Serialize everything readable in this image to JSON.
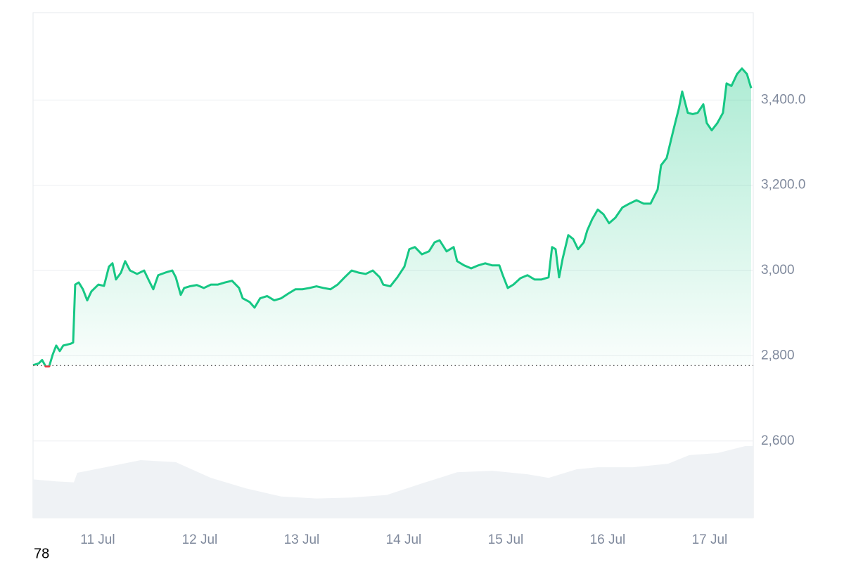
{
  "chart_data": {
    "type": "line",
    "x": [
      10.366,
      10.421,
      10.455,
      10.49,
      10.524,
      10.559,
      10.593,
      10.628,
      10.662,
      10.731,
      10.759,
      10.779,
      10.814,
      10.855,
      10.897,
      10.938,
      11.007,
      11.062,
      11.11,
      11.145,
      11.179,
      11.228,
      11.269,
      11.317,
      11.386,
      11.455,
      11.503,
      11.545,
      11.593,
      11.662,
      11.731,
      11.766,
      11.814,
      11.848,
      11.903,
      11.972,
      12.041,
      12.11,
      12.179,
      12.248,
      12.317,
      12.386,
      12.421,
      12.49,
      12.538,
      12.593,
      12.662,
      12.731,
      12.8,
      12.869,
      12.938,
      13.007,
      13.076,
      13.145,
      13.214,
      13.283,
      13.352,
      13.421,
      13.49,
      13.559,
      13.628,
      13.697,
      13.766,
      13.8,
      13.869,
      13.938,
      14.007,
      14.055,
      14.11,
      14.179,
      14.248,
      14.303,
      14.352,
      14.421,
      14.49,
      14.524,
      14.593,
      14.662,
      14.731,
      14.8,
      14.869,
      14.938,
      14.972,
      15.021,
      15.076,
      15.145,
      15.214,
      15.283,
      15.352,
      15.421,
      15.455,
      15.49,
      15.524,
      15.559,
      15.614,
      15.662,
      15.71,
      15.766,
      15.8,
      15.848,
      15.903,
      15.959,
      16.014,
      16.076,
      16.145,
      16.214,
      16.283,
      16.352,
      16.421,
      16.49,
      16.524,
      16.579,
      16.628,
      16.662,
      16.697,
      16.731,
      16.786,
      16.834,
      16.883,
      16.938,
      16.972,
      17.021,
      17.076,
      17.131,
      17.166,
      17.214,
      17.269,
      17.317,
      17.366,
      17.407
    ],
    "values": [
      2778,
      2782,
      2790,
      2775,
      2775,
      2803,
      2824,
      2811,
      2824,
      2828,
      2831,
      2967,
      2972,
      2956,
      2930,
      2951,
      2967,
      2964,
      3009,
      3017,
      2979,
      2995,
      3022,
      3000,
      2992,
      3000,
      2976,
      2956,
      2989,
      2995,
      3000,
      2984,
      2943,
      2959,
      2963,
      2966,
      2959,
      2967,
      2967,
      2972,
      2976,
      2959,
      2935,
      2926,
      2913,
      2935,
      2940,
      2930,
      2935,
      2946,
      2956,
      2956,
      2959,
      2963,
      2959,
      2956,
      2967,
      2984,
      3000,
      2995,
      2992,
      3000,
      2984,
      2967,
      2963,
      2984,
      3009,
      3050,
      3055,
      3038,
      3045,
      3066,
      3071,
      3045,
      3055,
      3022,
      3012,
      3005,
      3012,
      3017,
      3012,
      3012,
      2989,
      2959,
      2967,
      2982,
      2989,
      2979,
      2979,
      2984,
      3055,
      3050,
      2984,
      3028,
      3083,
      3074,
      3050,
      3066,
      3094,
      3120,
      3143,
      3132,
      3111,
      3124,
      3148,
      3157,
      3165,
      3157,
      3157,
      3190,
      3247,
      3264,
      3313,
      3346,
      3379,
      3420,
      3370,
      3367,
      3370,
      3390,
      3346,
      3329,
      3346,
      3370,
      3439,
      3433,
      3461,
      3474,
      3461,
      3428
    ],
    "baseline": 2777,
    "up_color": "#16c784",
    "down_color": "#ea3943",
    "volume_color": "#eff2f5",
    "volume": {
      "x": [
        10.366,
        10.593,
        10.766,
        10.8,
        11.076,
        11.421,
        11.766,
        12.11,
        12.455,
        12.8,
        13.145,
        13.49,
        13.834,
        14.179,
        14.524,
        14.869,
        15.214,
        15.421,
        15.697,
        15.903,
        16.248,
        16.593,
        16.8,
        17.076,
        17.352,
        17.428
      ],
      "values": [
        7.6,
        7.2,
        7.0,
        8.9,
        10.0,
        11.4,
        11.0,
        7.9,
        5.8,
        4.2,
        3.8,
        4.0,
        4.5,
        6.8,
        9.0,
        9.3,
        8.6,
        7.9,
        9.6,
        10.0,
        10.0,
        10.7,
        12.4,
        12.8,
        14.2,
        14.2
      ],
      "lim": [
        0,
        100
      ]
    },
    "xlim": [
      10.366,
      17.428
    ],
    "xticks": [
      {
        "value": 11,
        "label": "11 Jul"
      },
      {
        "value": 12,
        "label": "12 Jul"
      },
      {
        "value": 13,
        "label": "13 Jul"
      },
      {
        "value": 14,
        "label": "14 Jul"
      },
      {
        "value": 15,
        "label": "15 Jul"
      },
      {
        "value": 16,
        "label": "16 Jul"
      },
      {
        "value": 17,
        "label": "17 Jul"
      }
    ],
    "ylim": [
      2420,
      3605
    ],
    "yticks": [
      {
        "value": 2600,
        "label": "2,600"
      },
      {
        "value": 2800,
        "label": "2,800"
      },
      {
        "value": 3000,
        "label": "3,000"
      },
      {
        "value": 3200,
        "label": "3,200.0"
      },
      {
        "value": 3400,
        "label": "3,400.0"
      }
    ],
    "grid": true,
    "annotation": "78"
  }
}
